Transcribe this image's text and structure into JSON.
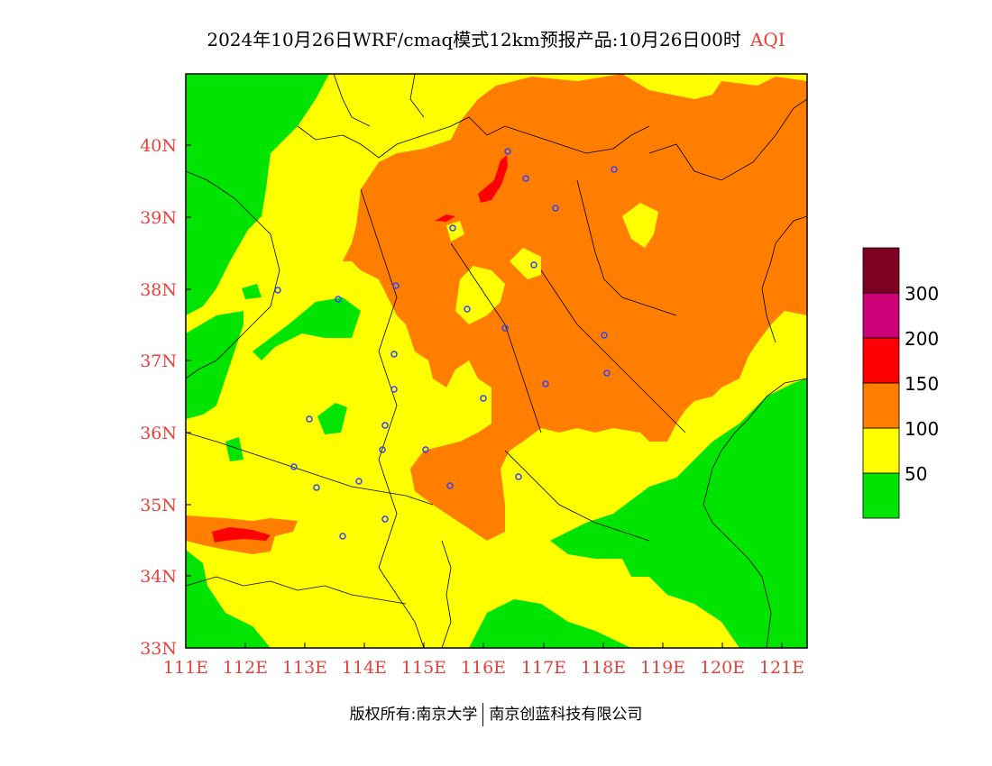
{
  "title": {
    "main": "2024年10月26日WRF/cmaq模式12km预报产品:10月26日00时",
    "variable": "AQI"
  },
  "map": {
    "lon_labels": [
      "111E",
      "112E",
      "113E",
      "114E",
      "115E",
      "116E",
      "117E",
      "118E",
      "119E",
      "120E",
      "121E"
    ],
    "lat_labels": [
      "33N",
      "34N",
      "35N",
      "36N",
      "37N",
      "38N",
      "39N",
      "40N"
    ],
    "lon_range": [
      111,
      121.4
    ],
    "lat_range": [
      33,
      41
    ]
  },
  "legend": {
    "levels": [
      {
        "label": "",
        "color": "#00e400"
      },
      {
        "label": "50",
        "color": "#ffff00"
      },
      {
        "label": "100",
        "color": "#ff7e00"
      },
      {
        "label": "150",
        "color": "#ff0000"
      },
      {
        "label": "200",
        "color": "#cc0077"
      },
      {
        "label": "300",
        "color": "#7e0023"
      }
    ]
  },
  "footer": {
    "left": "版权所有:南京大学",
    "right": "南京创蓝科技有限公司"
  }
}
